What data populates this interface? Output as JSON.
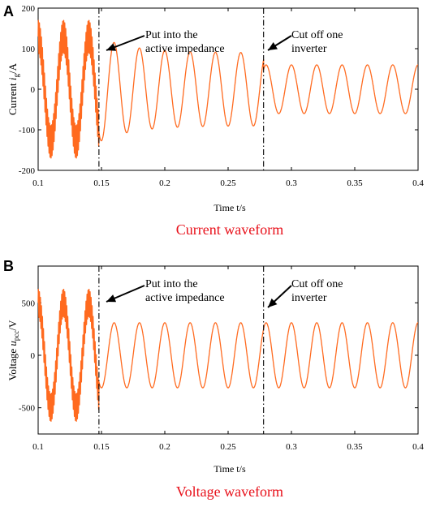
{
  "chart_data": [
    {
      "panel": "A",
      "type": "line",
      "title": "Current waveform",
      "xlabel": "Time t/s",
      "ylabel": {
        "pre": "Current ",
        "var": "i",
        "sub": "g",
        "post": "/A"
      },
      "xlim": [
        0.1,
        0.4
      ],
      "ylim": [
        -200,
        200
      ],
      "x_ticks": [
        "0.1",
        "0.15",
        "0.2",
        "0.25",
        "0.3",
        "0.35",
        "0.4"
      ],
      "y_ticks": [
        "-200",
        "-100",
        "0",
        "100",
        "200"
      ],
      "grid": false,
      "series": [
        {
          "color": "#FF6A1F",
          "frequency_hz": 50,
          "segments": [
            {
              "t_start": 0.1,
              "t_end": 0.148,
              "amplitude": 130,
              "harmonic_ripple_amplitude": 40
            },
            {
              "t_start": 0.148,
              "t_end": 0.278,
              "amplitude_start": 130,
              "amplitude_end": 90,
              "harmonic_ripple_amplitude": 0
            },
            {
              "t_start": 0.278,
              "t_end": 0.4,
              "amplitude": 60,
              "harmonic_ripple_amplitude": 0
            }
          ]
        }
      ],
      "events": [
        {
          "x": 0.148,
          "label_lines": [
            "Put into the",
            "active impedance"
          ]
        },
        {
          "x": 0.278,
          "label_lines": [
            "Cut off one",
            "inverter"
          ]
        }
      ]
    },
    {
      "panel": "B",
      "type": "line",
      "title": "Voltage waveform",
      "xlabel": "Time t/s",
      "ylabel": {
        "pre": "Voltage ",
        "var": "u",
        "sub": "pcc",
        "post": "/V"
      },
      "xlim": [
        0.1,
        0.4
      ],
      "ylim": [
        -750,
        850
      ],
      "x_ticks": [
        "0.1",
        "0.15",
        "0.2",
        "0.25",
        "0.3",
        "0.35",
        "0.4"
      ],
      "y_ticks": [
        "-500",
        "0",
        "500"
      ],
      "grid": false,
      "series": [
        {
          "color": "#FF6A1F",
          "frequency_hz": 50,
          "segments": [
            {
              "t_start": 0.1,
              "t_end": 0.148,
              "amplitude": 500,
              "harmonic_ripple_amplitude": 130
            },
            {
              "t_start": 0.148,
              "t_end": 0.4,
              "amplitude": 310,
              "harmonic_ripple_amplitude": 0
            }
          ]
        }
      ],
      "events": [
        {
          "x": 0.148,
          "label_lines": [
            "Put into the",
            "active  impedance"
          ]
        },
        {
          "x": 0.278,
          "label_lines": [
            "Cut off one",
            "inverter"
          ]
        }
      ]
    }
  ],
  "colors": {
    "signal": "#FF6A1F",
    "caption": "#E8101A",
    "axis": "#000000"
  }
}
